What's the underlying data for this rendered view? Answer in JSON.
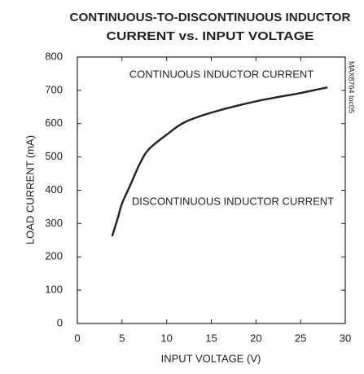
{
  "chart_data": {
    "type": "line",
    "title": [
      "CONTINUOUS-TO-DISCONTINUOUS INDUCTOR",
      "CURRENT vs. INPUT VOLTAGE"
    ],
    "x_label": "INPUT VOLTAGE (V)",
    "y_label": "LOAD CURRENT (mA)",
    "annotations": [
      "CONTINUOUS INDUCTOR CURRENT",
      "DISCONTINUOUS INDUCTOR CURRENT",
      "MAX8764 toc05"
    ],
    "x": [
      3.9,
      4.6,
      5,
      6,
      7,
      8,
      10,
      12,
      15,
      20,
      25,
      28
    ],
    "values": [
      262,
      323,
      360,
      420,
      480,
      523,
      567,
      604,
      633,
      667,
      692,
      709
    ],
    "color": "#222222",
    "xlim": [
      0,
      30
    ],
    "xticks": [
      0,
      5,
      10,
      15,
      20,
      25,
      30
    ],
    "ylim": [
      0,
      800
    ],
    "yticks": [
      0,
      100,
      200,
      300,
      400,
      500,
      600,
      700,
      800
    ],
    "grid": false
  }
}
